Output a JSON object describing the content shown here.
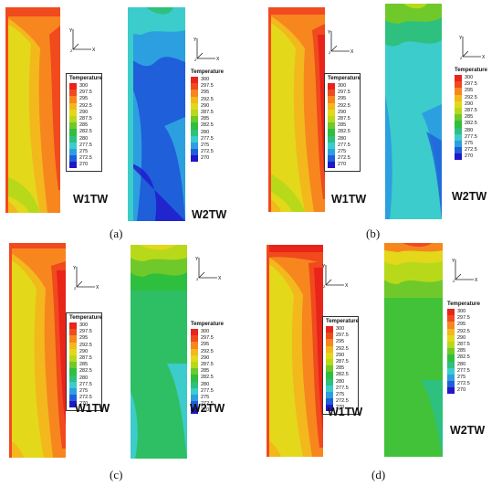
{
  "panels": [
    {
      "label": "(a)",
      "wall1": "W1TW",
      "wall2": "W2TW"
    },
    {
      "label": "(b)",
      "wall1": "W1TW",
      "wall2": "W2TW"
    },
    {
      "label": "(c)",
      "wall1": "W1TW",
      "wall2": "W2TW"
    },
    {
      "label": "(d)",
      "wall1": "W1TW",
      "wall2": "W2TW"
    }
  ],
  "legend": {
    "title": "Temperature",
    "title_alt": "Temperature",
    "values": [
      "300",
      "297.5",
      "295",
      "292.5",
      "290",
      "287.5",
      "285",
      "282.5",
      "280",
      "277.5",
      "275",
      "272.5",
      "270"
    ],
    "colors": [
      "#e8241b",
      "#f04a1e",
      "#f7861f",
      "#f2b81c",
      "#e3d81a",
      "#b8d91a",
      "#6fc92a",
      "#2ebf3e",
      "#2ec07e",
      "#3ccccb",
      "#2c9fe0",
      "#1f5fd9",
      "#2017c9"
    ]
  },
  "axis_labels": {
    "y": "Y",
    "x": "X",
    "z": "Z"
  }
}
